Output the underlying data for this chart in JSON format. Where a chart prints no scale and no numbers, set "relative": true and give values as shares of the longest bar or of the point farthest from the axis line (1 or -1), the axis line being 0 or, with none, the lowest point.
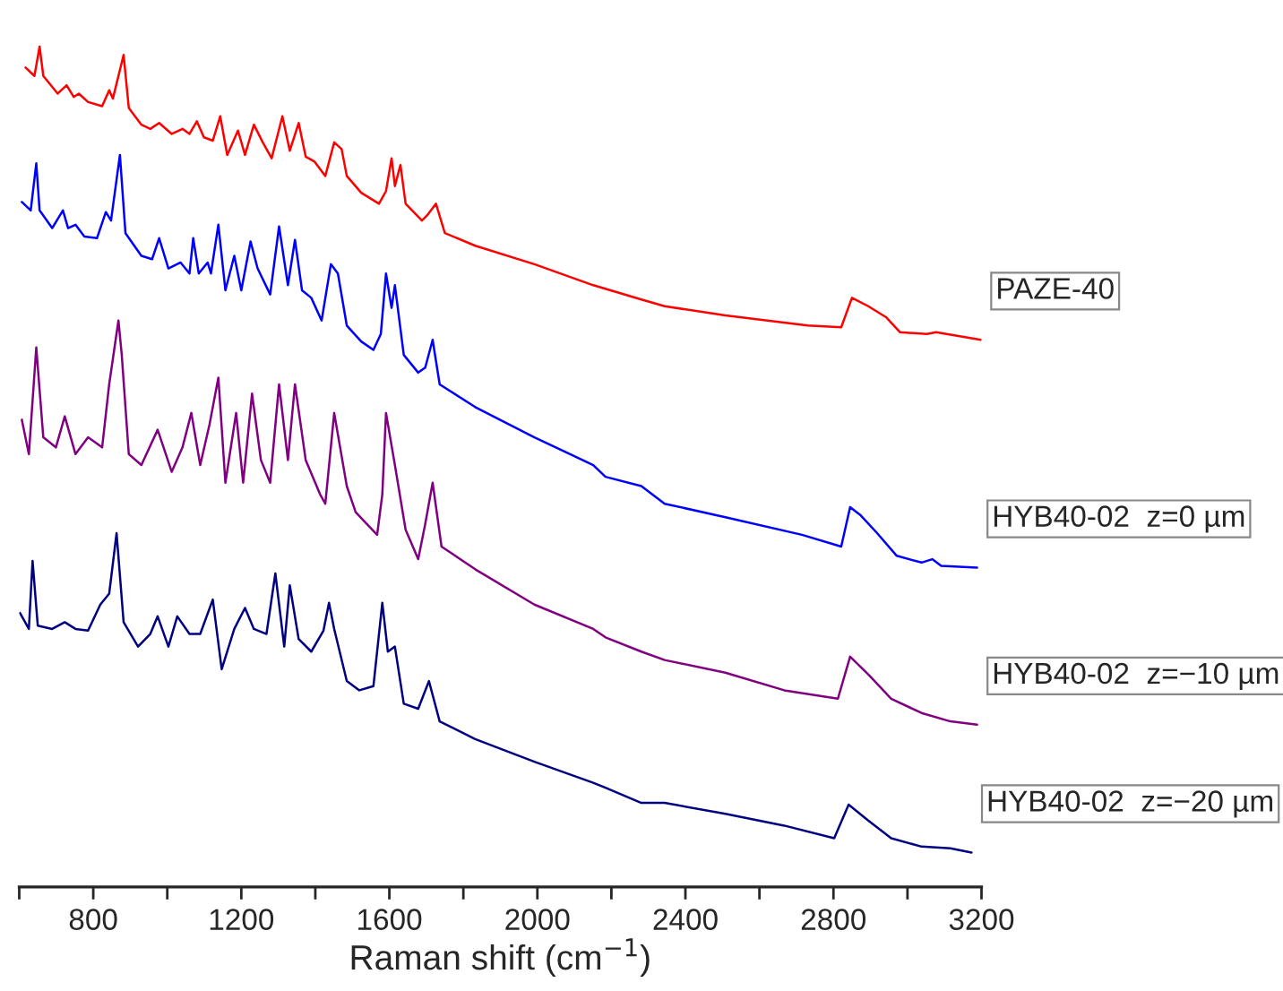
{
  "chart_data": {
    "type": "line",
    "relative": true,
    "xlabel": "Raman shift (cm$^{−1}$)",
    "xlim": [
      600,
      3200
    ],
    "xticks": [
      {
        "value": 600,
        "label": null
      },
      800,
      {
        "value": 1000,
        "label": null
      },
      1200,
      {
        "value": 1400,
        "label": null
      },
      1600,
      {
        "value": 1800,
        "label": null
      },
      2000,
      {
        "value": 2200,
        "label": null
      },
      2400,
      {
        "value": 2600,
        "label": null
      },
      2800,
      {
        "value": 3000,
        "label": null
      },
      3200
    ],
    "grid": false,
    "legend": false,
    "marker": "none",
    "line_style": "solid",
    "series": [
      {
        "name": "PAZE-40",
        "color": "#ff0000",
        "x": [
          617,
          641,
          655,
          665,
          704,
          728,
          747,
          761,
          786,
          824,
          843,
          853,
          882,
          896,
          930,
          954,
          978,
          1012,
          1041,
          1060,
          1080,
          1099,
          1123,
          1143,
          1162,
          1191,
          1210,
          1234,
          1258,
          1282,
          1311,
          1331,
          1355,
          1374,
          1398,
          1427,
          1451,
          1471,
          1485,
          1524,
          1572,
          1591,
          1606,
          1615,
          1630,
          1644,
          1688,
          1702,
          1726,
          1750,
          1832,
          1992,
          2151,
          2281,
          2344,
          2508,
          2730,
          2821,
          2850,
          2894,
          2942,
          2980,
          3053,
          3077,
          3198
        ],
        "values": [
          0.975,
          0.965,
          1.0,
          0.965,
          0.944,
          0.954,
          0.94,
          0.944,
          0.934,
          0.929,
          0.948,
          0.938,
          0.99,
          0.927,
          0.907,
          0.902,
          0.909,
          0.896,
          0.902,
          0.896,
          0.911,
          0.892,
          0.888,
          0.917,
          0.871,
          0.9,
          0.871,
          0.907,
          0.886,
          0.867,
          0.917,
          0.876,
          0.909,
          0.869,
          0.863,
          0.846,
          0.886,
          0.878,
          0.846,
          0.826,
          0.813,
          0.828,
          0.867,
          0.834,
          0.859,
          0.813,
          0.793,
          0.799,
          0.813,
          0.778,
          0.763,
          0.741,
          0.716,
          0.699,
          0.691,
          0.68,
          0.668,
          0.666,
          0.701,
          0.691,
          0.678,
          0.66,
          0.658,
          0.66,
          0.651
        ]
      },
      {
        "name": "HYB40-02  z=0 µm",
        "color": "#0000ff",
        "x": [
          607,
          631,
          646,
          655,
          689,
          718,
          732,
          752,
          776,
          810,
          834,
          848,
          872,
          887,
          930,
          959,
          978,
          1003,
          1036,
          1060,
          1070,
          1085,
          1109,
          1118,
          1138,
          1157,
          1181,
          1200,
          1225,
          1244,
          1278,
          1302,
          1326,
          1345,
          1364,
          1389,
          1417,
          1442,
          1461,
          1485,
          1524,
          1557,
          1577,
          1591,
          1606,
          1615,
          1639,
          1678,
          1697,
          1717,
          1736,
          1832,
          1992,
          2151,
          2184,
          2281,
          2344,
          2508,
          2715,
          2821,
          2845,
          2874,
          2918,
          2971,
          3038,
          3067,
          3091,
          3188
        ],
        "values": [
          0.815,
          0.805,
          0.861,
          0.805,
          0.784,
          0.805,
          0.784,
          0.788,
          0.774,
          0.772,
          0.803,
          0.793,
          0.871,
          0.778,
          0.751,
          0.747,
          0.772,
          0.736,
          0.743,
          0.73,
          0.772,
          0.73,
          0.743,
          0.73,
          0.788,
          0.71,
          0.751,
          0.71,
          0.768,
          0.736,
          0.705,
          0.786,
          0.716,
          0.77,
          0.71,
          0.701,
          0.674,
          0.741,
          0.73,
          0.668,
          0.649,
          0.639,
          0.658,
          0.73,
          0.689,
          0.716,
          0.633,
          0.612,
          0.618,
          0.651,
          0.598,
          0.571,
          0.535,
          0.502,
          0.488,
          0.477,
          0.456,
          0.44,
          0.419,
          0.405,
          0.452,
          0.442,
          0.421,
          0.394,
          0.386,
          0.39,
          0.382,
          0.38
        ]
      },
      {
        "name": "HYB40-02  z=−10 µm",
        "color": "#800080",
        "x": [
          607,
          626,
          646,
          665,
          699,
          723,
          752,
          786,
          824,
          843,
          868,
          877,
          896,
          930,
          974,
          1012,
          1041,
          1065,
          1089,
          1114,
          1138,
          1157,
          1186,
          1205,
          1229,
          1253,
          1278,
          1302,
          1326,
          1345,
          1374,
          1413,
          1427,
          1451,
          1485,
          1509,
          1567,
          1581,
          1591,
          1615,
          1644,
          1678,
          1697,
          1717,
          1741,
          1832,
          1992,
          2151,
          2184,
          2281,
          2344,
          2508,
          2667,
          2812,
          2845,
          2894,
          2956,
          3038,
          3116,
          3188
        ],
        "values": [
          0.556,
          0.515,
          0.642,
          0.535,
          0.523,
          0.56,
          0.515,
          0.535,
          0.523,
          0.598,
          0.674,
          0.633,
          0.515,
          0.502,
          0.544,
          0.494,
          0.523,
          0.564,
          0.502,
          0.55,
          0.606,
          0.481,
          0.564,
          0.481,
          0.587,
          0.508,
          0.481,
          0.598,
          0.508,
          0.598,
          0.508,
          0.467,
          0.456,
          0.564,
          0.477,
          0.446,
          0.419,
          0.467,
          0.564,
          0.502,
          0.425,
          0.39,
          0.432,
          0.481,
          0.405,
          0.378,
          0.336,
          0.307,
          0.297,
          0.28,
          0.27,
          0.255,
          0.234,
          0.224,
          0.274,
          0.253,
          0.224,
          0.207,
          0.197,
          0.193
        ]
      },
      {
        "name": "HYB40-02  z=−20 µm",
        "color": "#000080",
        "x": [
          602,
          626,
          636,
          650,
          689,
          723,
          752,
          786,
          819,
          843,
          863,
          882,
          921,
          954,
          974,
          1003,
          1027,
          1060,
          1089,
          1123,
          1147,
          1181,
          1210,
          1234,
          1268,
          1292,
          1316,
          1331,
          1355,
          1389,
          1422,
          1437,
          1451,
          1485,
          1519,
          1557,
          1581,
          1596,
          1615,
          1639,
          1678,
          1707,
          1736,
          1832,
          1992,
          2151,
          2184,
          2281,
          2344,
          2508,
          2667,
          2802,
          2841,
          2894,
          2956,
          3038,
          3116,
          3173
        ],
        "values": [
          0.326,
          0.307,
          0.388,
          0.311,
          0.307,
          0.315,
          0.307,
          0.305,
          0.336,
          0.349,
          0.421,
          0.315,
          0.286,
          0.301,
          0.322,
          0.286,
          0.322,
          0.301,
          0.301,
          0.342,
          0.259,
          0.307,
          0.332,
          0.307,
          0.301,
          0.373,
          0.286,
          0.359,
          0.295,
          0.28,
          0.305,
          0.338,
          0.307,
          0.245,
          0.234,
          0.239,
          0.338,
          0.28,
          0.286,
          0.218,
          0.212,
          0.245,
          0.197,
          0.176,
          0.149,
          0.124,
          0.118,
          0.1,
          0.1,
          0.087,
          0.073,
          0.058,
          0.098,
          0.079,
          0.058,
          0.048,
          0.046,
          0.041
        ]
      }
    ]
  }
}
